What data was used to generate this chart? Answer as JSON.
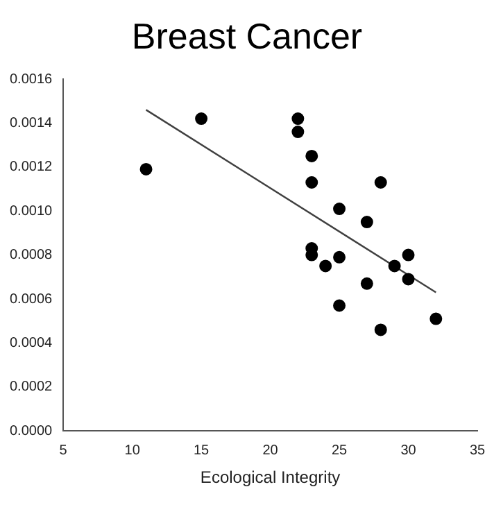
{
  "chart_data": {
    "type": "scatter",
    "title": "Breast Cancer",
    "xlabel": "Ecological Integrity",
    "xlim": [
      5,
      35
    ],
    "xticks": [
      5,
      10,
      15,
      20,
      25,
      30,
      35
    ],
    "ylim": [
      0,
      0.0016
    ],
    "yticks": [
      {
        "value": 0,
        "label": "0.0000"
      },
      0.0002,
      0.0004,
      0.0006,
      0.0008,
      {
        "value": 0.001,
        "label": "0.0010"
      },
      0.0012,
      0.0014,
      0.0016
    ],
    "grid": false,
    "legend": false,
    "marker": "circle",
    "series": [
      {
        "color": "#000000",
        "x": [
          11,
          15,
          22,
          22,
          23,
          23,
          23,
          23,
          24,
          25,
          25,
          25,
          27,
          27,
          28,
          28,
          29,
          30,
          30,
          32
        ],
        "values": [
          0.00119,
          0.00142,
          0.00142,
          0.00136,
          0.00125,
          0.00113,
          0.00083,
          0.0008,
          0.00075,
          0.00101,
          0.00079,
          0.00057,
          0.00095,
          0.00067,
          0.00113,
          0.00046,
          0.00075,
          0.0008,
          0.00069,
          0.00051
        ]
      },
      {
        "type": "line",
        "color": "#404040",
        "x": [
          11,
          32
        ],
        "values": [
          0.00146,
          0.00063
        ],
        "marker": "none",
        "line_style": "solid"
      }
    ]
  }
}
